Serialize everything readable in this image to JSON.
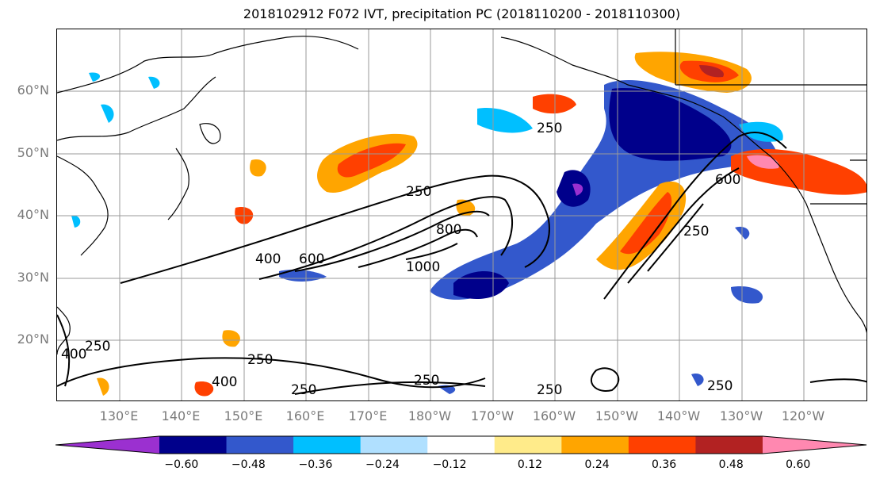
{
  "title": "2018102912 F072 IVT, precipitation PC (2018110200 - 2018110300)",
  "lat_labels": [
    "60°N",
    "50°N",
    "40°N",
    "30°N",
    "20°N"
  ],
  "lon_labels": [
    "130°E",
    "140°E",
    "150°E",
    "160°E",
    "170°E",
    "180°W",
    "170°W",
    "160°W",
    "150°W",
    "140°W",
    "130°W",
    "120°W"
  ],
  "contour_labels": [
    "250",
    "400",
    "600",
    "800",
    "1000",
    "250",
    "600",
    "250",
    "250",
    "400",
    "250",
    "250",
    "250",
    "250",
    "250",
    "400"
  ],
  "colorbar": {
    "ticks": [
      "−0.60",
      "−0.48",
      "−0.36",
      "−0.24",
      "−0.12",
      "0.12",
      "0.24",
      "0.36",
      "0.48",
      "0.60"
    ],
    "colors": [
      "#9b30d0",
      "#00008b",
      "#3358cc",
      "#00bfff",
      "#b0e0ff",
      "#ffffff",
      "#ffeb8a",
      "#ffa500",
      "#ff4000",
      "#b22222",
      "#ff88b0"
    ]
  }
}
